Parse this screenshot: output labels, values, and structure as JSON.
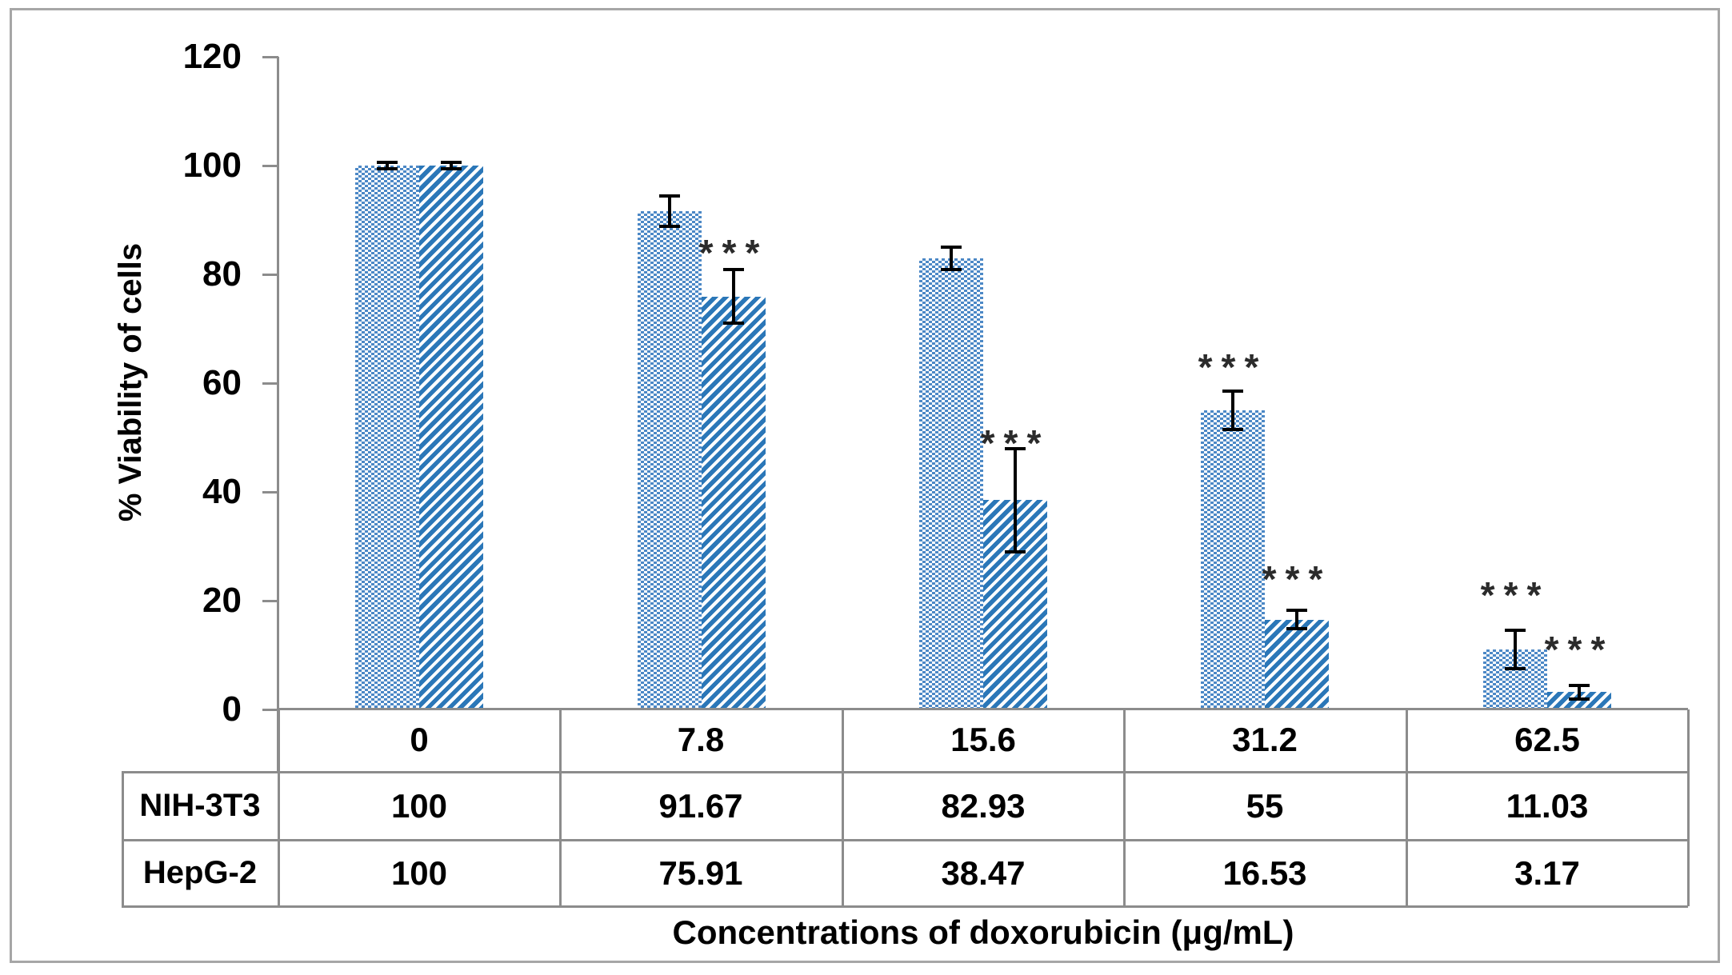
{
  "chart_data": {
    "type": "bar",
    "y_axis_title": "% Viability of cells",
    "x_axis_title": "Concentrations of doxorubicin (μg/mL)",
    "ylim": [
      0,
      120
    ],
    "yticks": [
      0,
      20,
      40,
      60,
      80,
      100,
      120
    ],
    "grid": "off",
    "legend_position": "table-below",
    "categories": [
      "0",
      "7.8",
      "15.6",
      "31.2",
      "62.5"
    ],
    "series": [
      {
        "name": "NIH-3T3",
        "pattern": "dots",
        "values": [
          100,
          91.67,
          82.93,
          55,
          11.03
        ],
        "errors": [
          0.6,
          2.8,
          2.1,
          3.6,
          3.5
        ]
      },
      {
        "name": "HepG-2",
        "pattern": "stripes",
        "values": [
          100,
          75.91,
          38.47,
          16.53,
          3.17
        ],
        "errors": [
          0.6,
          4.9,
          9.5,
          1.7,
          1.3
        ]
      }
    ],
    "annotations": [
      {
        "group": 1,
        "series": 1,
        "text": "***",
        "y": 85
      },
      {
        "group": 2,
        "series": 1,
        "text": "***",
        "y": 50
      },
      {
        "group": 3,
        "series": 0,
        "text": "***",
        "y": 64
      },
      {
        "group": 3,
        "series": 1,
        "text": "***",
        "y": 25
      },
      {
        "group": 4,
        "series": 0,
        "text": "***",
        "y": 22
      },
      {
        "group": 4,
        "series": 1,
        "text": "***",
        "y": 12
      }
    ],
    "table": {
      "row_headers": [
        "NIH-3T3",
        "HepG-2"
      ],
      "rows": [
        [
          "100",
          "91.67",
          "82.93",
          "55",
          "11.03"
        ],
        [
          "100",
          "75.91",
          "38.47",
          "16.53",
          "3.17"
        ]
      ]
    },
    "colors": {
      "dots_blue": "#4C88C6",
      "stripes_blue": "#2B77B8",
      "axis_gray": "#8C8C8C",
      "frame_gray": "#A6A6A6",
      "error_bar": "#000000",
      "significance": "#2B2B2B",
      "text": "#000000"
    }
  }
}
